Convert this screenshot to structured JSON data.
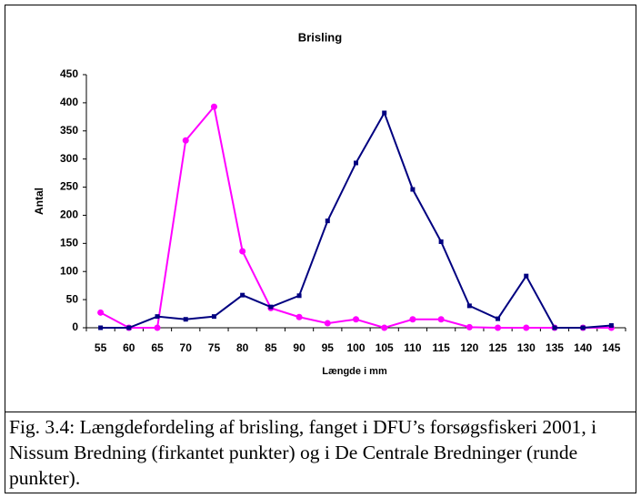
{
  "chart_data": {
    "type": "line",
    "title": "Brisling",
    "x_label": "Længde i mm",
    "y_label": "Antal",
    "categories": [
      "55",
      "60",
      "65",
      "70",
      "75",
      "80",
      "85",
      "90",
      "95",
      "100",
      "105",
      "110",
      "115",
      "120",
      "125",
      "130",
      "135",
      "140",
      "145"
    ],
    "series": [
      {
        "color": "#ff00ff",
        "marker": "circle",
        "values": [
          27,
          0,
          0,
          333,
          393,
          136,
          35,
          19,
          8,
          15,
          0,
          15,
          15,
          1,
          0,
          0,
          0,
          0,
          0
        ]
      },
      {
        "color": "#000080",
        "marker": "square",
        "values": [
          0,
          0,
          20,
          15,
          20,
          58,
          37,
          57,
          190,
          293,
          382,
          246,
          153,
          39,
          16,
          92,
          0,
          0,
          4
        ]
      }
    ],
    "ylim": [
      0,
      450
    ],
    "yticks": [
      0,
      50,
      100,
      150,
      200,
      250,
      300,
      350,
      400,
      450
    ],
    "grid": false
  },
  "caption": "Fig. 3.4: Længdefordeling af brisling, fanget i DFU’s forsøgsfiskeri 2001,  i Nissum Bredning (firkantet punkter) og i De Centrale Bredninger (runde punkter)."
}
